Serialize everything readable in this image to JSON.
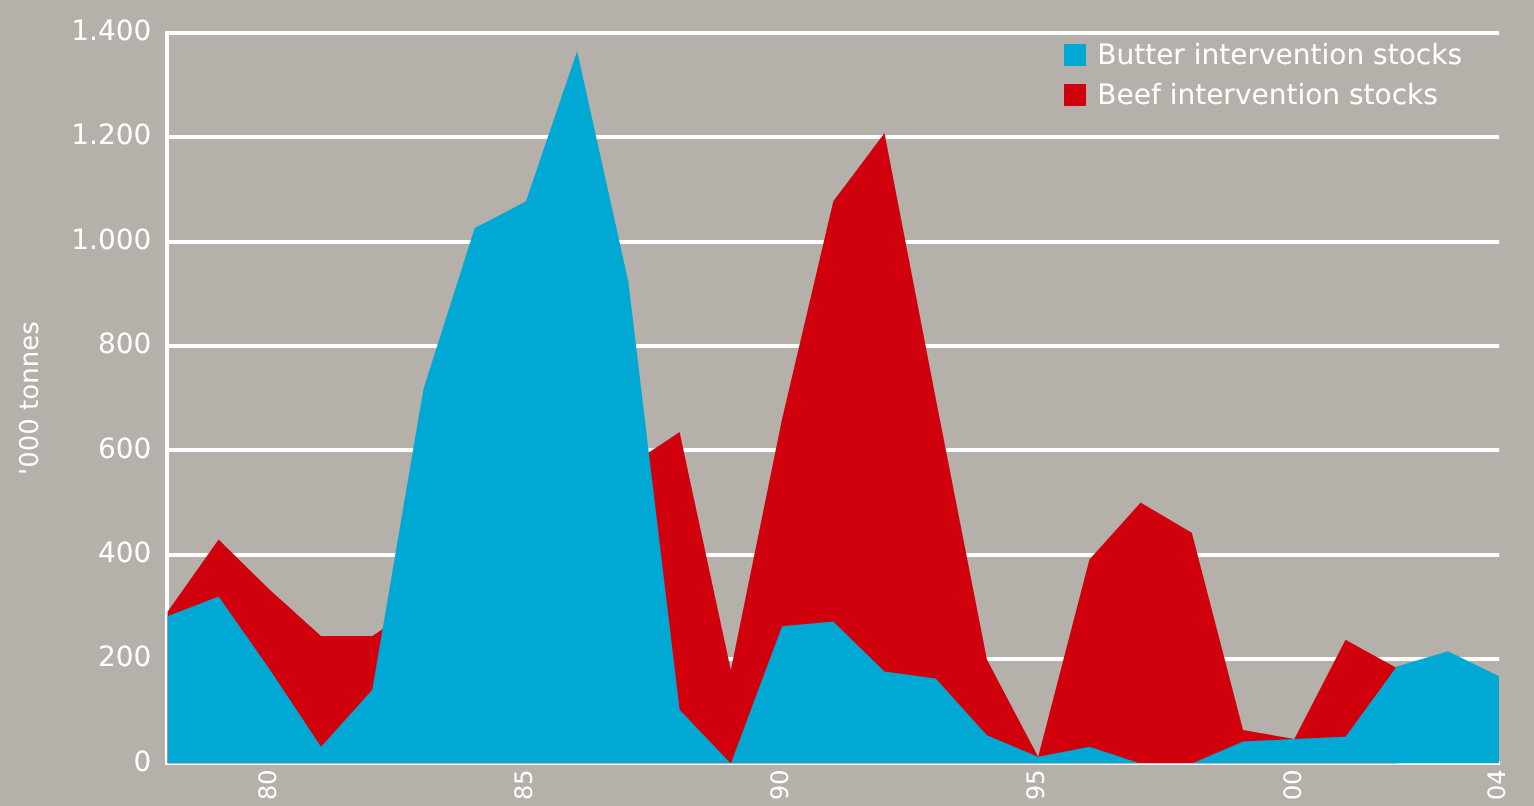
{
  "chart_data": {
    "type": "area",
    "ylabel": "'000 tonnes",
    "x": [
      1978,
      1979,
      1980,
      1981,
      1982,
      1983,
      1984,
      1985,
      1986,
      1987,
      1988,
      1989,
      1990,
      1991,
      1992,
      1993,
      1994,
      1995,
      1996,
      1997,
      1998,
      1999,
      2000,
      2001,
      2002,
      2003,
      2004
    ],
    "series": [
      {
        "name": "Butter intervention stocks",
        "color": "#00a9d4",
        "values": [
          282,
          320,
          180,
          32,
          141,
          718,
          1026,
          1077,
          1365,
          923,
          103,
          0,
          263,
          272,
          176,
          163,
          54,
          13,
          32,
          0,
          0,
          42,
          47,
          51,
          186,
          215,
          167
        ]
      },
      {
        "name": "Beef intervention stocks",
        "color": "#d0000d",
        "values": [
          290,
          429,
          333,
          244,
          244,
          null,
          null,
          null,
          null,
          null,
          635,
          179,
          660,
          1077,
          1208,
          700,
          199,
          13,
          391,
          500,
          442,
          64,
          47,
          237,
          183,
          null,
          null
        ]
      }
    ],
    "xlim": [
      1978,
      2004
    ],
    "xticks": [
      {
        "value": 1980,
        "label": "80"
      },
      {
        "value": 1985,
        "label": "85"
      },
      {
        "value": 1990,
        "label": "90"
      },
      {
        "value": 1995,
        "label": "95"
      },
      {
        "value": 2000,
        "label": "00"
      },
      {
        "value": 2004,
        "label": "04"
      }
    ],
    "ylim": [
      0,
      1400
    ],
    "yticks": [
      0,
      {
        "value": 200,
        "label": "200"
      },
      {
        "value": 400,
        "label": "400"
      },
      {
        "value": 600,
        "label": "600"
      },
      {
        "value": 800,
        "label": "800"
      },
      {
        "value": 1000,
        "label": "1.000"
      },
      {
        "value": 1200,
        "label": "1.200"
      },
      {
        "value": 1400,
        "label": "1.400"
      }
    ],
    "grid": "y",
    "legend": "top right"
  }
}
